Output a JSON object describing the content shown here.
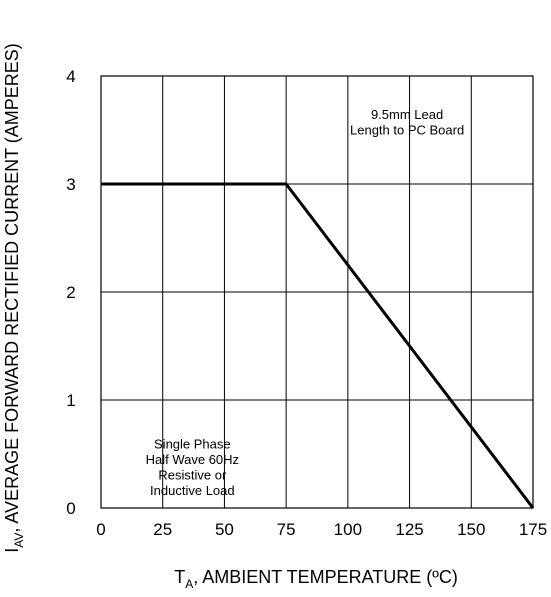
{
  "chart_data": {
    "type": "line",
    "title": "",
    "xlabel": {
      "main": "T",
      "sub": "A",
      "rest": ", AMBIENT TEMPERATURE (ºC)"
    },
    "ylabel": {
      "main": "I",
      "sub": "AV",
      "rest": ", AVERAGE FORWARD RECTIFIED CURRENT (AMPERES)"
    },
    "xlim": [
      0,
      175
    ],
    "ylim": [
      0,
      4
    ],
    "xticks": [
      0,
      25,
      50,
      75,
      100,
      125,
      150,
      175
    ],
    "yticks": [
      0,
      1,
      2,
      3,
      4
    ],
    "grid": true,
    "series": [
      {
        "x": [
          0,
          75,
          175
        ],
        "y": [
          3,
          3,
          0
        ]
      }
    ],
    "annotations": [
      {
        "lines": [
          "9.5mm Lead",
          "Length to PC Board"
        ],
        "x": 124,
        "y": 3.6
      },
      {
        "lines": [
          "Single Phase",
          "Half Wave 60Hz",
          "Resistive or",
          "Inductive Load"
        ],
        "x": 37,
        "y": 0.55
      }
    ]
  }
}
